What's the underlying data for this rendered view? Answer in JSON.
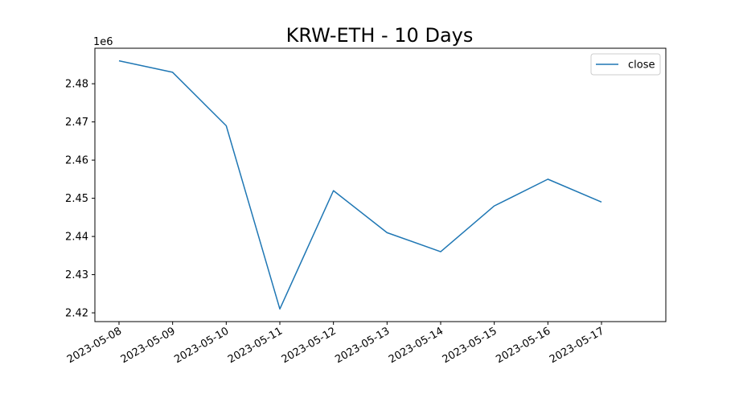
{
  "chart_data": {
    "type": "line",
    "title": "KRW-ETH - 10 Days",
    "x": [
      "2023-05-08",
      "2023-05-09",
      "2023-05-10",
      "2023-05-11",
      "2023-05-12",
      "2023-05-13",
      "2023-05-14",
      "2023-05-15",
      "2023-05-16",
      "2023-05-17"
    ],
    "series": [
      {
        "name": "close",
        "color": "#1f77b4",
        "values": [
          2.486,
          2.483,
          2.469,
          2.421,
          2.452,
          2.441,
          2.436,
          2.448,
          2.455,
          2.449
        ]
      }
    ],
    "ylim": [
      2.4177,
      2.4893
    ],
    "yticks": [
      2.42,
      2.43,
      2.44,
      2.45,
      2.46,
      2.47,
      2.48
    ],
    "y_offset_label": "1e6",
    "xticks": [
      "2023-05-08",
      "2023-05-09",
      "2023-05-10",
      "2023-05-11",
      "2023-05-12",
      "2023-05-13",
      "2023-05-14",
      "2023-05-15",
      "2023-05-16",
      "2023-05-17"
    ],
    "legend": "upper right"
  }
}
